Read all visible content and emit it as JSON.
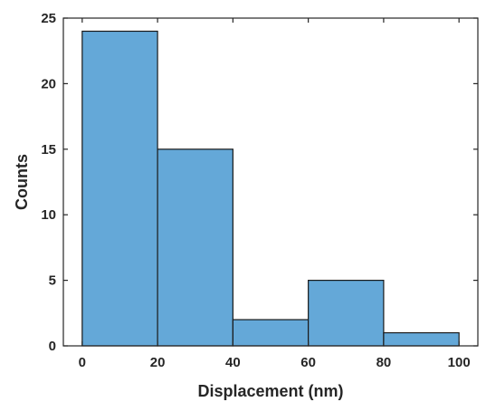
{
  "chart_data": {
    "type": "bar",
    "histogram": true,
    "title": "",
    "xlabel": "Displacement (nm)",
    "ylabel": "Counts",
    "bin_edges": [
      0,
      20,
      40,
      60,
      80,
      100
    ],
    "values": [
      24,
      15,
      2,
      5,
      1
    ],
    "xlim": [
      -5,
      105
    ],
    "ylim": [
      0,
      25
    ],
    "xticks": [
      0,
      20,
      40,
      60,
      80,
      100
    ],
    "yticks": [
      0,
      5,
      10,
      15,
      20,
      25
    ],
    "xtick_labels": [
      "0",
      "20",
      "40",
      "60",
      "80",
      "100"
    ],
    "ytick_labels": [
      "0",
      "5",
      "10",
      "15",
      "20",
      "25"
    ],
    "grid": false,
    "legend": "none",
    "colors": {
      "bar_fill": "#64a8d8",
      "bar_edge": "#1a1a1a",
      "axis": "#262626"
    }
  }
}
